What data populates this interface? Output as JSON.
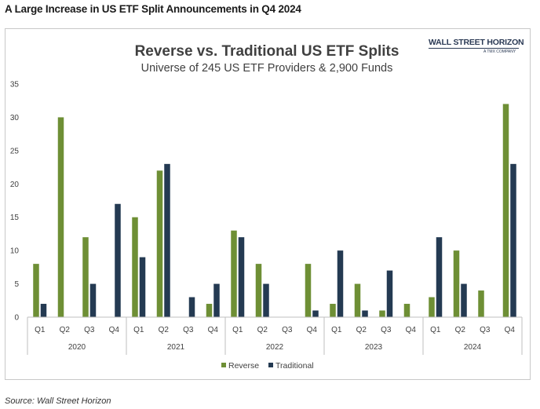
{
  "headline": "A Large Increase in US ETF Split Announcements in Q4 2024",
  "source": "Source: Wall Street Horizon",
  "logo": {
    "main": "WALL STREET HORIZON",
    "sub": "A TMX COMPANY"
  },
  "colors": {
    "reverse": "#6e8f35",
    "traditional": "#243a52",
    "axis": "#bfbfbf",
    "text": "#404040"
  },
  "chart_data": {
    "type": "bar",
    "title": "Reverse vs. Traditional US ETF Splits",
    "subtitle": "Universe of 245 US ETF Providers & 2,900 Funds",
    "years": [
      "2020",
      "2021",
      "2022",
      "2023",
      "2024"
    ],
    "quarters": [
      "Q1",
      "Q2",
      "Q3",
      "Q4"
    ],
    "categories": [
      "Q1 2020",
      "Q2 2020",
      "Q3 2020",
      "Q4 2020",
      "Q1 2021",
      "Q2 2021",
      "Q3 2021",
      "Q4 2021",
      "Q1 2022",
      "Q2 2022",
      "Q3 2022",
      "Q4 2022",
      "Q1 2023",
      "Q2 2023",
      "Q3 2023",
      "Q4 2023",
      "Q1 2024",
      "Q2 2024",
      "Q3 2024",
      "Q4 2024"
    ],
    "series": [
      {
        "name": "Reverse",
        "values": [
          8,
          30,
          12,
          0,
          15,
          22,
          0,
          2,
          13,
          8,
          0,
          8,
          2,
          5,
          1,
          2,
          3,
          10,
          4,
          32
        ]
      },
      {
        "name": "Traditional",
        "values": [
          2,
          0,
          5,
          17,
          9,
          23,
          3,
          5,
          12,
          5,
          0,
          1,
          10,
          1,
          7,
          0,
          12,
          5,
          0,
          23
        ]
      }
    ],
    "ylim": [
      0,
      35
    ],
    "yticks": [
      0,
      5,
      10,
      15,
      20,
      25,
      30,
      35
    ],
    "grid": false,
    "legend": "bottom-center"
  }
}
